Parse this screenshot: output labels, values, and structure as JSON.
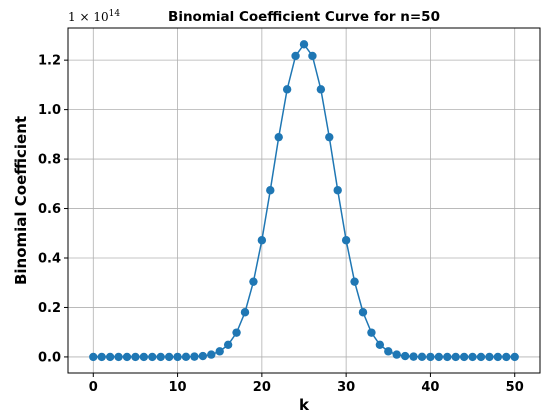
{
  "chart_data": {
    "type": "line",
    "title": "Binomial Coefficient Curve for n=50",
    "xlabel": "k",
    "ylabel": "Binomial Coefficient",
    "offset_text": "1 × 10",
    "offset_exponent": "14",
    "xlim": [
      -3,
      53
    ],
    "ylim": [
      -0.065,
      1.33
    ],
    "x_ticks": [
      0,
      10,
      20,
      30,
      40,
      50
    ],
    "y_ticks": [
      0.0,
      0.2,
      0.4,
      0.6,
      0.8,
      1.0,
      1.2
    ],
    "y_tick_labels": [
      "0.0",
      "0.2",
      "0.4",
      "0.6",
      "0.8",
      "1.0",
      "1.2"
    ],
    "grid": true,
    "series": [
      {
        "color": "#1f77b4",
        "marker": "circle",
        "x": [
          0,
          1,
          2,
          3,
          4,
          5,
          6,
          7,
          8,
          9,
          10,
          11,
          12,
          13,
          14,
          15,
          16,
          17,
          18,
          19,
          20,
          21,
          22,
          23,
          24,
          25,
          26,
          27,
          28,
          29,
          30,
          31,
          32,
          33,
          34,
          35,
          36,
          37,
          38,
          39,
          40,
          41,
          42,
          43,
          44,
          45,
          46,
          47,
          48,
          49,
          50
        ],
        "y": [
          0,
          0,
          0,
          0,
          0,
          0,
          0,
          0,
          0,
          0,
          0.0001,
          0.0004,
          0.0012,
          0.0035,
          0.0094,
          0.0225,
          0.049,
          0.0982,
          0.1807,
          0.3043,
          0.4718,
          0.674,
          0.8886,
          1.0819,
          1.217,
          1.2641,
          1.217,
          1.0819,
          0.8886,
          0.674,
          0.4718,
          0.3043,
          0.1807,
          0.0982,
          0.049,
          0.0225,
          0.0094,
          0.0035,
          0.0012,
          0.0004,
          0.0001,
          0,
          0,
          0,
          0,
          0,
          0,
          0,
          0,
          0,
          0
        ]
      }
    ]
  }
}
